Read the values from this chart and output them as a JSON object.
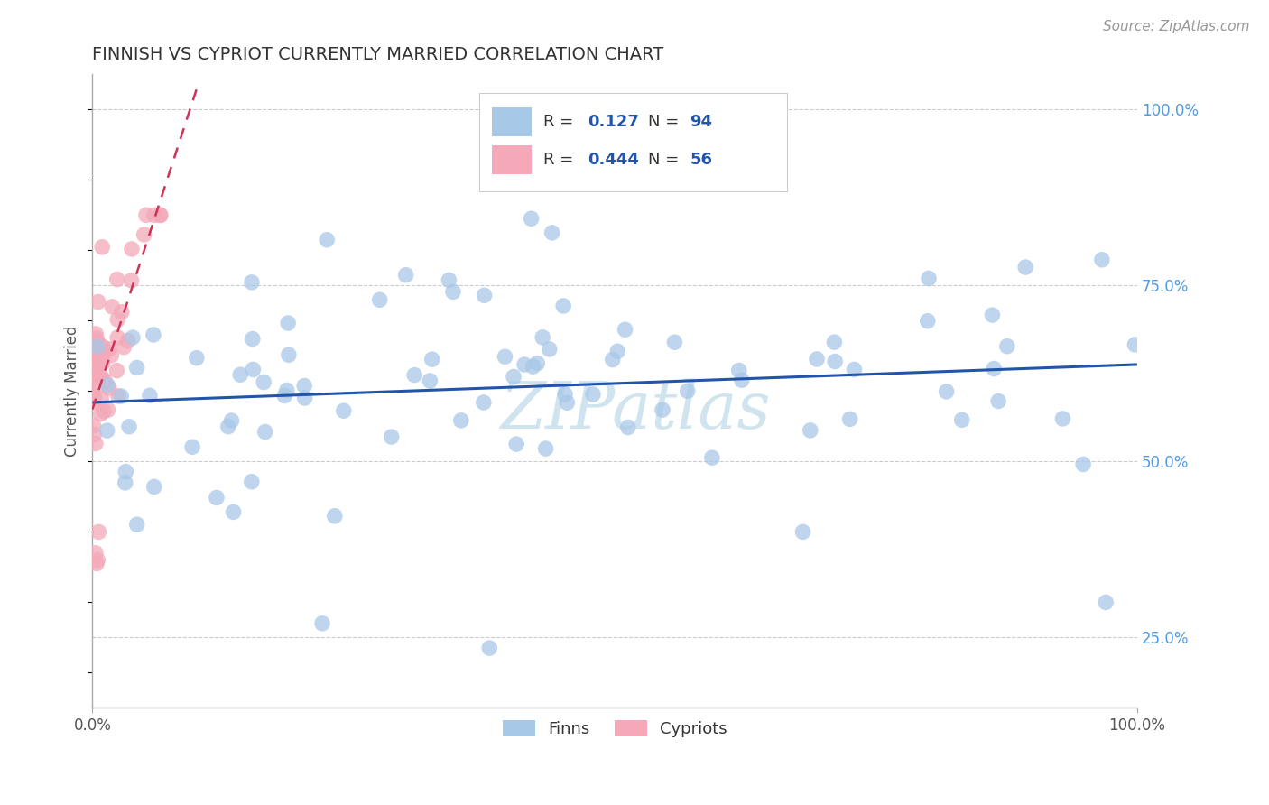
{
  "title": "FINNISH VS CYPRIOT CURRENTLY MARRIED CORRELATION CHART",
  "source_text": "Source: ZipAtlas.com",
  "ylabel": "Currently Married",
  "xlim": [
    0,
    1.0
  ],
  "ylim": [
    0.15,
    1.05
  ],
  "finn_color": "#a8c8e8",
  "cypriot_color": "#f4a8b8",
  "finn_line_color": "#2255aa",
  "cypriot_line_color": "#cc3355",
  "legend_finn_label": "Finns",
  "legend_cypriot_label": "Cypriots",
  "finns_R": 0.127,
  "finns_N": 94,
  "cypriots_R": 0.444,
  "cypriots_N": 56,
  "grid_color": "#cccccc",
  "grid_yticks": [
    0.25,
    0.5,
    0.75,
    1.0
  ],
  "right_ytick_labels": [
    "25.0%",
    "50.0%",
    "75.0%",
    "100.0%"
  ],
  "right_ytick_color": "#5599dd",
  "watermark_text": "ZIPatlas",
  "watermark_color": "#d0e4f0",
  "title_color": "#333333",
  "title_fontsize": 14,
  "source_color": "#999999",
  "source_fontsize": 11,
  "legend_R_color": "#2255aa",
  "legend_N_color": "#2255aa",
  "legend_label_color": "#333333"
}
